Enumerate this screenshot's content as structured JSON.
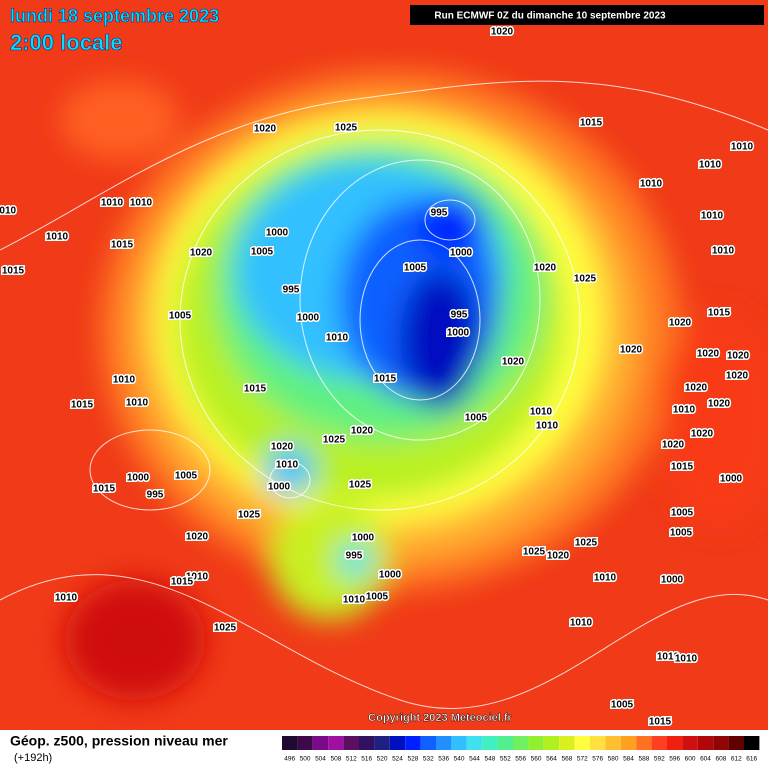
{
  "header": {
    "date": "lundi 18 septembre 2023",
    "time": "2:00 locale",
    "run": "Run ECMWF 0Z du dimanche 10 septembre 2023"
  },
  "isobars": [
    "1020",
    "1020",
    "1025",
    "1015",
    "1010",
    "1010",
    "1010",
    "995",
    "1010",
    "1010",
    "1010",
    "1010",
    "1010",
    "1015",
    "1000",
    "1005",
    "1020",
    "1005",
    "1000",
    "1020",
    "1025",
    "1010",
    "1015",
    "995",
    "995",
    "1000",
    "1005",
    "1020",
    "1015",
    "1010",
    "1000",
    "1020",
    "1020",
    "1020",
    "1020",
    "1010",
    "1020",
    "1015",
    "1015",
    "1020",
    "1010",
    "1015",
    "1010",
    "1020",
    "1010",
    "1010",
    "1005",
    "1025",
    "1020",
    "1020",
    "1020",
    "1020",
    "1010",
    "1015",
    "1000",
    "1005",
    "995",
    "1000",
    "1025",
    "1000",
    "1015",
    "1025",
    "1005",
    "1005",
    "1020",
    "1000",
    "1025",
    "1025",
    "1020",
    "995",
    "1010",
    "1015",
    "1000",
    "1010",
    "1000",
    "1010",
    "1005",
    "1010",
    "1010",
    "1025",
    "1010",
    "1010",
    "1005",
    "1015"
  ],
  "footer": {
    "title": "Géop. z500, pression niveau mer",
    "lead": "(+192h)",
    "copyright": "Copyright 2023 Meteociel.fr"
  },
  "legend": {
    "values": [
      496,
      500,
      504,
      508,
      512,
      516,
      520,
      524,
      528,
      532,
      536,
      540,
      544,
      548,
      552,
      556,
      560,
      564,
      568,
      572,
      576,
      580,
      584,
      588,
      592,
      596,
      600,
      604,
      608,
      612,
      616
    ],
    "colors": [
      "#1e0a2e",
      "#3c0a4a",
      "#7a0a8a",
      "#a010a0",
      "#5a1060",
      "#301060",
      "#202080",
      "#0010c0",
      "#0020ff",
      "#1060ff",
      "#2090ff",
      "#30c0ff",
      "#40e0f0",
      "#40f0c0",
      "#50f090",
      "#70f060",
      "#90f030",
      "#b0f020",
      "#d8f020",
      "#ffff40",
      "#ffe040",
      "#ffc030",
      "#ffa020",
      "#ff7020",
      "#ff4020",
      "#f02010",
      "#d01010",
      "#b00808",
      "#900505",
      "#600000",
      "#000000"
    ]
  }
}
